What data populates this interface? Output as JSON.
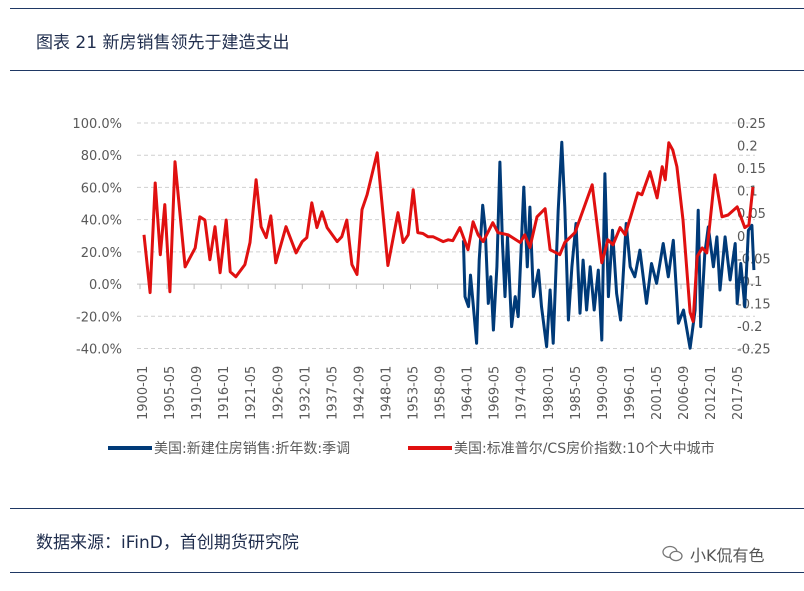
{
  "title": "图表 21 新房销售领先于建造支出",
  "source": "数据来源：iFinD，首创期货研究院",
  "watermark": {
    "text": "小K侃有色",
    "icon": "wechat-icon"
  },
  "chart_data": {
    "type": "line",
    "title": "",
    "y_left": {
      "ticks": [
        "100.0%",
        "80.0%",
        "60.0%",
        "40.0%",
        "20.0%",
        "0.0%",
        "-20.0%",
        "-40.0%"
      ],
      "range": [
        -40,
        100
      ],
      "unit": "%"
    },
    "y_right": {
      "ticks": [
        "0.25",
        "0.2",
        "0.15",
        "0.1",
        "0.05",
        "0",
        "-0.05",
        "-0.1",
        "-0.15",
        "-0.2",
        "-0.25"
      ],
      "range": [
        -0.25,
        0.25
      ]
    },
    "x_ticks": [
      "1900-01",
      "1905-05",
      "1910-09",
      "1916-01",
      "1921-05",
      "1926-09",
      "1932-01",
      "1937-05",
      "1942-09",
      "1948-01",
      "1953-05",
      "1958-09",
      "1964-01",
      "1969-05",
      "1974-09",
      "1980-01",
      "1985-05",
      "1990-09",
      "1996-01",
      "2001-05",
      "2006-09",
      "2012-01",
      "2017-05"
    ],
    "grid": true,
    "legend_position": "bottom",
    "series": [
      {
        "name": "美国:新建住房销售:折年数:季调",
        "axis": "left",
        "color": "#003a78",
        "points": [
          [
            1963.4,
            27.2
          ],
          [
            1963.7,
            -7.8
          ],
          [
            1964.4,
            -14.0
          ],
          [
            1964.8,
            5.6
          ],
          [
            1965.3,
            -12.0
          ],
          [
            1966.0,
            -36.7
          ],
          [
            1966.5,
            14.9
          ],
          [
            1967.2,
            48.9
          ],
          [
            1967.7,
            34.5
          ],
          [
            1968.3,
            -12.0
          ],
          [
            1968.8,
            4.5
          ],
          [
            1969.3,
            -28.5
          ],
          [
            1970.0,
            10.7
          ],
          [
            1970.6,
            75.7
          ],
          [
            1971.1,
            25.2
          ],
          [
            1971.6,
            -7.8
          ],
          [
            1972.1,
            29.3
          ],
          [
            1972.9,
            -26.4
          ],
          [
            1973.6,
            -7.8
          ],
          [
            1974.2,
            -20.2
          ],
          [
            1975.3,
            60.2
          ],
          [
            1976.0,
            10.7
          ],
          [
            1976.5,
            47.8
          ],
          [
            1977.2,
            -7.8
          ],
          [
            1978.2,
            8.7
          ],
          [
            1978.8,
            -14.0
          ],
          [
            1979.8,
            -38.8
          ],
          [
            1980.5,
            -3.7
          ],
          [
            1981.1,
            -36.7
          ],
          [
            1982.1,
            45.8
          ],
          [
            1982.8,
            88.1
          ],
          [
            1983.4,
            47.8
          ],
          [
            1984.1,
            -22.3
          ],
          [
            1984.8,
            10.7
          ],
          [
            1985.6,
            37.6
          ],
          [
            1986.4,
            -18.1
          ],
          [
            1987.0,
            14.9
          ],
          [
            1987.7,
            -16.1
          ],
          [
            1988.4,
            10.7
          ],
          [
            1989.2,
            -16.1
          ],
          [
            1990.0,
            8.7
          ],
          [
            1990.7,
            -34.7
          ],
          [
            1991.3,
            68.5
          ],
          [
            1992.0,
            -7.8
          ],
          [
            1992.8,
            33.4
          ],
          [
            1993.6,
            -5.8
          ],
          [
            1994.4,
            -22.3
          ],
          [
            1995.5,
            37.6
          ],
          [
            1996.3,
            10.7
          ],
          [
            1997.2,
            4.5
          ],
          [
            1998.2,
            21.0
          ],
          [
            1999.5,
            -12.0
          ],
          [
            2000.5,
            12.8
          ],
          [
            2001.5,
            0.4
          ],
          [
            2002.8,
            25.2
          ],
          [
            2003.8,
            4.5
          ],
          [
            2004.8,
            27.2
          ],
          [
            2005.8,
            -24.3
          ],
          [
            2006.8,
            -16.1
          ],
          [
            2008.1,
            -39.8
          ],
          [
            2009.1,
            -16.1
          ],
          [
            2009.7,
            45.8
          ],
          [
            2010.2,
            -26.4
          ],
          [
            2011.0,
            19.0
          ],
          [
            2011.7,
            35.5
          ],
          [
            2012.7,
            10.7
          ],
          [
            2013.4,
            29.3
          ],
          [
            2014.0,
            -3.7
          ],
          [
            2015.0,
            29.3
          ],
          [
            2016.0,
            2.5
          ],
          [
            2017.0,
            25.2
          ],
          [
            2017.4,
            -12.0
          ],
          [
            2018.1,
            12.8
          ],
          [
            2018.9,
            -14.0
          ],
          [
            2019.6,
            33.4
          ],
          [
            2020.3,
            36.5
          ],
          [
            2020.7,
            8.7
          ]
        ]
      },
      {
        "name": "美国:标准普尔/CS房价指数:10个大中城市",
        "axis": "right",
        "color": "#e01010",
        "points": [
          [
            1900.4,
            0.002
          ],
          [
            1901.6,
            -0.126
          ],
          [
            1902.6,
            0.117
          ],
          [
            1903.6,
            -0.042
          ],
          [
            1904.5,
            0.069
          ],
          [
            1905.5,
            -0.124
          ],
          [
            1906.5,
            0.164
          ],
          [
            1908.5,
            -0.069
          ],
          [
            1910.5,
            -0.027
          ],
          [
            1911.4,
            0.042
          ],
          [
            1912.4,
            0.035
          ],
          [
            1913.4,
            -0.053
          ],
          [
            1914.4,
            0.02
          ],
          [
            1915.4,
            -0.082
          ],
          [
            1916.6,
            0.035
          ],
          [
            1917.4,
            -0.08
          ],
          [
            1918.5,
            -0.091
          ],
          [
            1920.3,
            -0.064
          ],
          [
            1921.3,
            -0.015
          ],
          [
            1922.5,
            0.124
          ],
          [
            1923.5,
            0.02
          ],
          [
            1924.5,
            -0.004
          ],
          [
            1925.4,
            0.044
          ],
          [
            1926.4,
            -0.06
          ],
          [
            1928.4,
            0.02
          ],
          [
            1930.4,
            -0.038
          ],
          [
            1931.6,
            -0.013
          ],
          [
            1932.5,
            -0.004
          ],
          [
            1933.5,
            0.073
          ],
          [
            1934.5,
            0.018
          ],
          [
            1935.5,
            0.053
          ],
          [
            1936.5,
            0.018
          ],
          [
            1938.5,
            -0.013
          ],
          [
            1939.4,
            -0.002
          ],
          [
            1940.4,
            0.035
          ],
          [
            1941.4,
            -0.064
          ],
          [
            1942.4,
            -0.086
          ],
          [
            1943.4,
            0.058
          ],
          [
            1944.4,
            0.091
          ],
          [
            1946.4,
            0.184
          ],
          [
            1948.5,
            -0.066
          ],
          [
            1950.5,
            0.051
          ],
          [
            1951.5,
            -0.015
          ],
          [
            1952.5,
            0.002
          ],
          [
            1953.5,
            0.102
          ],
          [
            1954.4,
            0.007
          ],
          [
            1955.4,
            0.005
          ],
          [
            1956.4,
            -0.002
          ],
          [
            1957.4,
            -0.002
          ],
          [
            1959.4,
            -0.013
          ],
          [
            1960.4,
            -0.009
          ],
          [
            1961.3,
            -0.011
          ],
          [
            1962.7,
            0.018
          ],
          [
            1964.3,
            -0.031
          ],
          [
            1965.3,
            0.031
          ],
          [
            1966.3,
            0.002
          ],
          [
            1967.3,
            -0.013
          ],
          [
            1969.2,
            0.029
          ],
          [
            1970.2,
            0.007
          ],
          [
            1972.2,
            0.002
          ],
          [
            1974.6,
            -0.015
          ],
          [
            1975.5,
            0.002
          ],
          [
            1976.5,
            -0.026
          ],
          [
            1977.9,
            0.042
          ],
          [
            1979.5,
            0.06
          ],
          [
            1980.5,
            -0.031
          ],
          [
            1982.4,
            -0.042
          ],
          [
            1983.4,
            -0.015
          ],
          [
            1985.4,
            0.007
          ],
          [
            1988.8,
            0.113
          ],
          [
            1990.7,
            -0.06
          ],
          [
            1991.9,
            -0.009
          ],
          [
            1992.9,
            -0.02
          ],
          [
            1994.3,
            0.018
          ],
          [
            1995.3,
            0.002
          ],
          [
            1997.8,
            0.095
          ],
          [
            1998.6,
            0.091
          ],
          [
            2000.2,
            0.142
          ],
          [
            2001.6,
            0.084
          ],
          [
            2002.6,
            0.153
          ],
          [
            2003.2,
            0.124
          ],
          [
            2003.9,
            0.206
          ],
          [
            2004.7,
            0.19
          ],
          [
            2005.5,
            0.153
          ],
          [
            2006.7,
            0.035
          ],
          [
            2008.1,
            -0.17
          ],
          [
            2008.7,
            -0.19
          ],
          [
            2009.5,
            -0.046
          ],
          [
            2010.5,
            -0.027
          ],
          [
            2011.4,
            -0.038
          ],
          [
            2013.0,
            0.135
          ],
          [
            2014.4,
            0.042
          ],
          [
            2015.6,
            0.046
          ],
          [
            2017.4,
            0.064
          ],
          [
            2018.9,
            0.018
          ],
          [
            2019.7,
            0.024
          ],
          [
            2020.5,
            0.108
          ]
        ]
      }
    ]
  }
}
